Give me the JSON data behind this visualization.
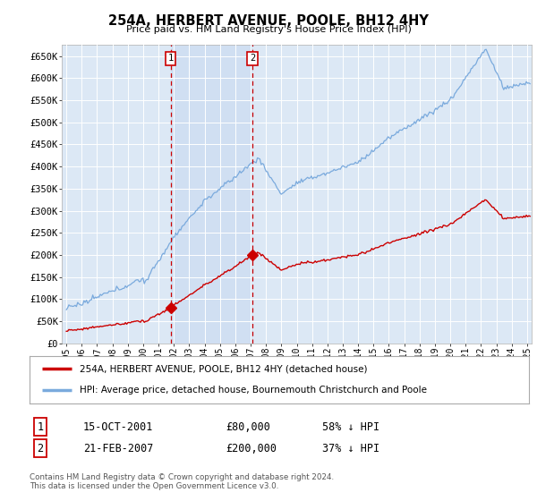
{
  "title": "254A, HERBERT AVENUE, POOLE, BH12 4HY",
  "subtitle": "Price paid vs. HM Land Registry's House Price Index (HPI)",
  "ylabel_ticks": [
    "£0",
    "£50K",
    "£100K",
    "£150K",
    "£200K",
    "£250K",
    "£300K",
    "£350K",
    "£400K",
    "£450K",
    "£500K",
    "£550K",
    "£600K",
    "£650K"
  ],
  "ylim": [
    0,
    675000
  ],
  "xlim_start": 1994.7,
  "xlim_end": 2025.3,
  "transaction1_x": 2001.79,
  "transaction1_y": 80000,
  "transaction2_x": 2007.12,
  "transaction2_y": 200000,
  "legend_property": "254A, HERBERT AVENUE, POOLE, BH12 4HY (detached house)",
  "legend_hpi": "HPI: Average price, detached house, Bournemouth Christchurch and Poole",
  "table_row1": [
    "1",
    "15-OCT-2001",
    "£80,000",
    "58% ↓ HPI"
  ],
  "table_row2": [
    "2",
    "21-FEB-2007",
    "£200,000",
    "37% ↓ HPI"
  ],
  "footnote1": "Contains HM Land Registry data © Crown copyright and database right 2024.",
  "footnote2": "This data is licensed under the Open Government Licence v3.0.",
  "line_color_property": "#cc0000",
  "line_color_hpi": "#7aaadd",
  "background_chart": "#dce8f5",
  "background_between": "#dce8f5",
  "background_fig": "#ffffff",
  "grid_color": "#ffffff",
  "vline_color": "#cc0000",
  "marker_color": "#cc0000",
  "shade_color": "#c8daf0"
}
